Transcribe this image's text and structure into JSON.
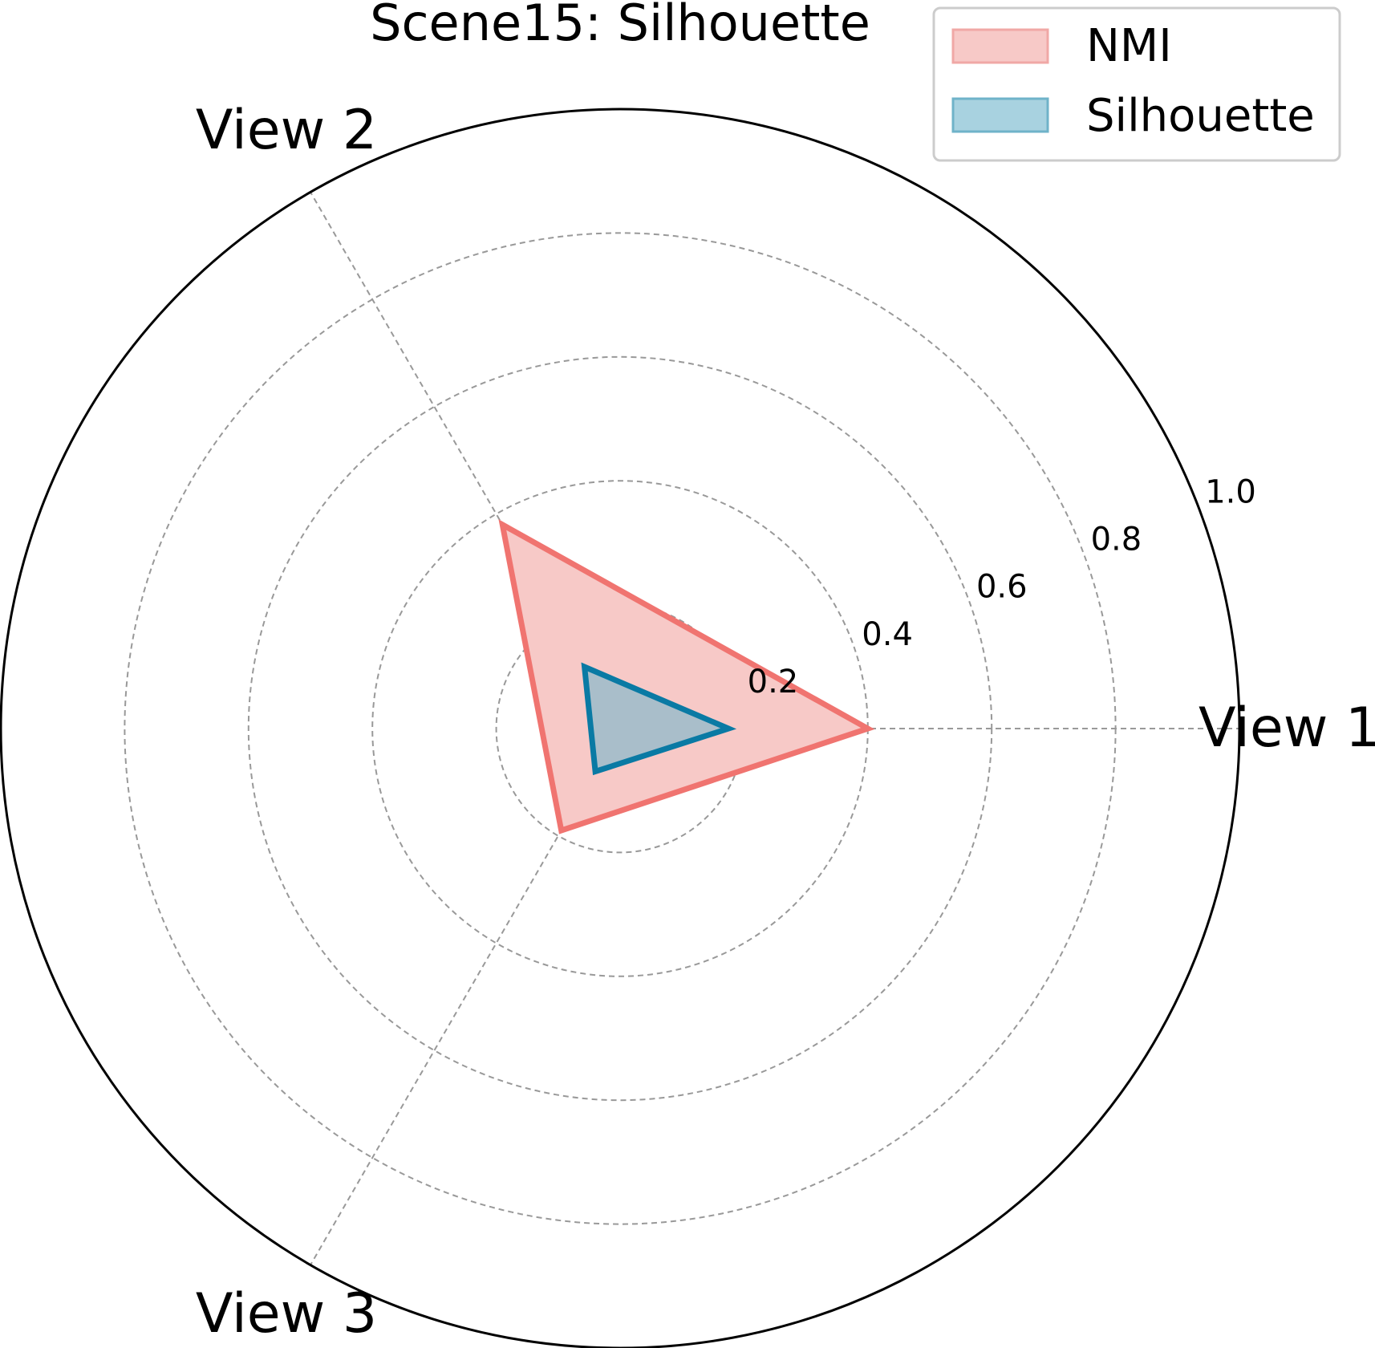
{
  "chart_data": {
    "type": "radar",
    "title": "Scene15: Silhouette",
    "axes": [
      "View 1",
      "View 2",
      "View 3"
    ],
    "rlim": [
      0,
      1.0
    ],
    "rticks": [
      0.2,
      0.4,
      0.6,
      0.8,
      1.0
    ],
    "rtick_labels": [
      "0.2",
      "0.4",
      "0.6",
      "0.8",
      "1.0"
    ],
    "grid": true,
    "legend_position": "top-right",
    "series": [
      {
        "name": "NMI",
        "values": [
          0.4,
          0.38,
          0.19
        ],
        "color": "#f07470",
        "fill": "#f7c9c7"
      },
      {
        "name": "Silhouette",
        "values": [
          0.175,
          0.115,
          0.08
        ],
        "color": "#0a7aa4",
        "fill": "#7fb8cc"
      }
    ]
  }
}
